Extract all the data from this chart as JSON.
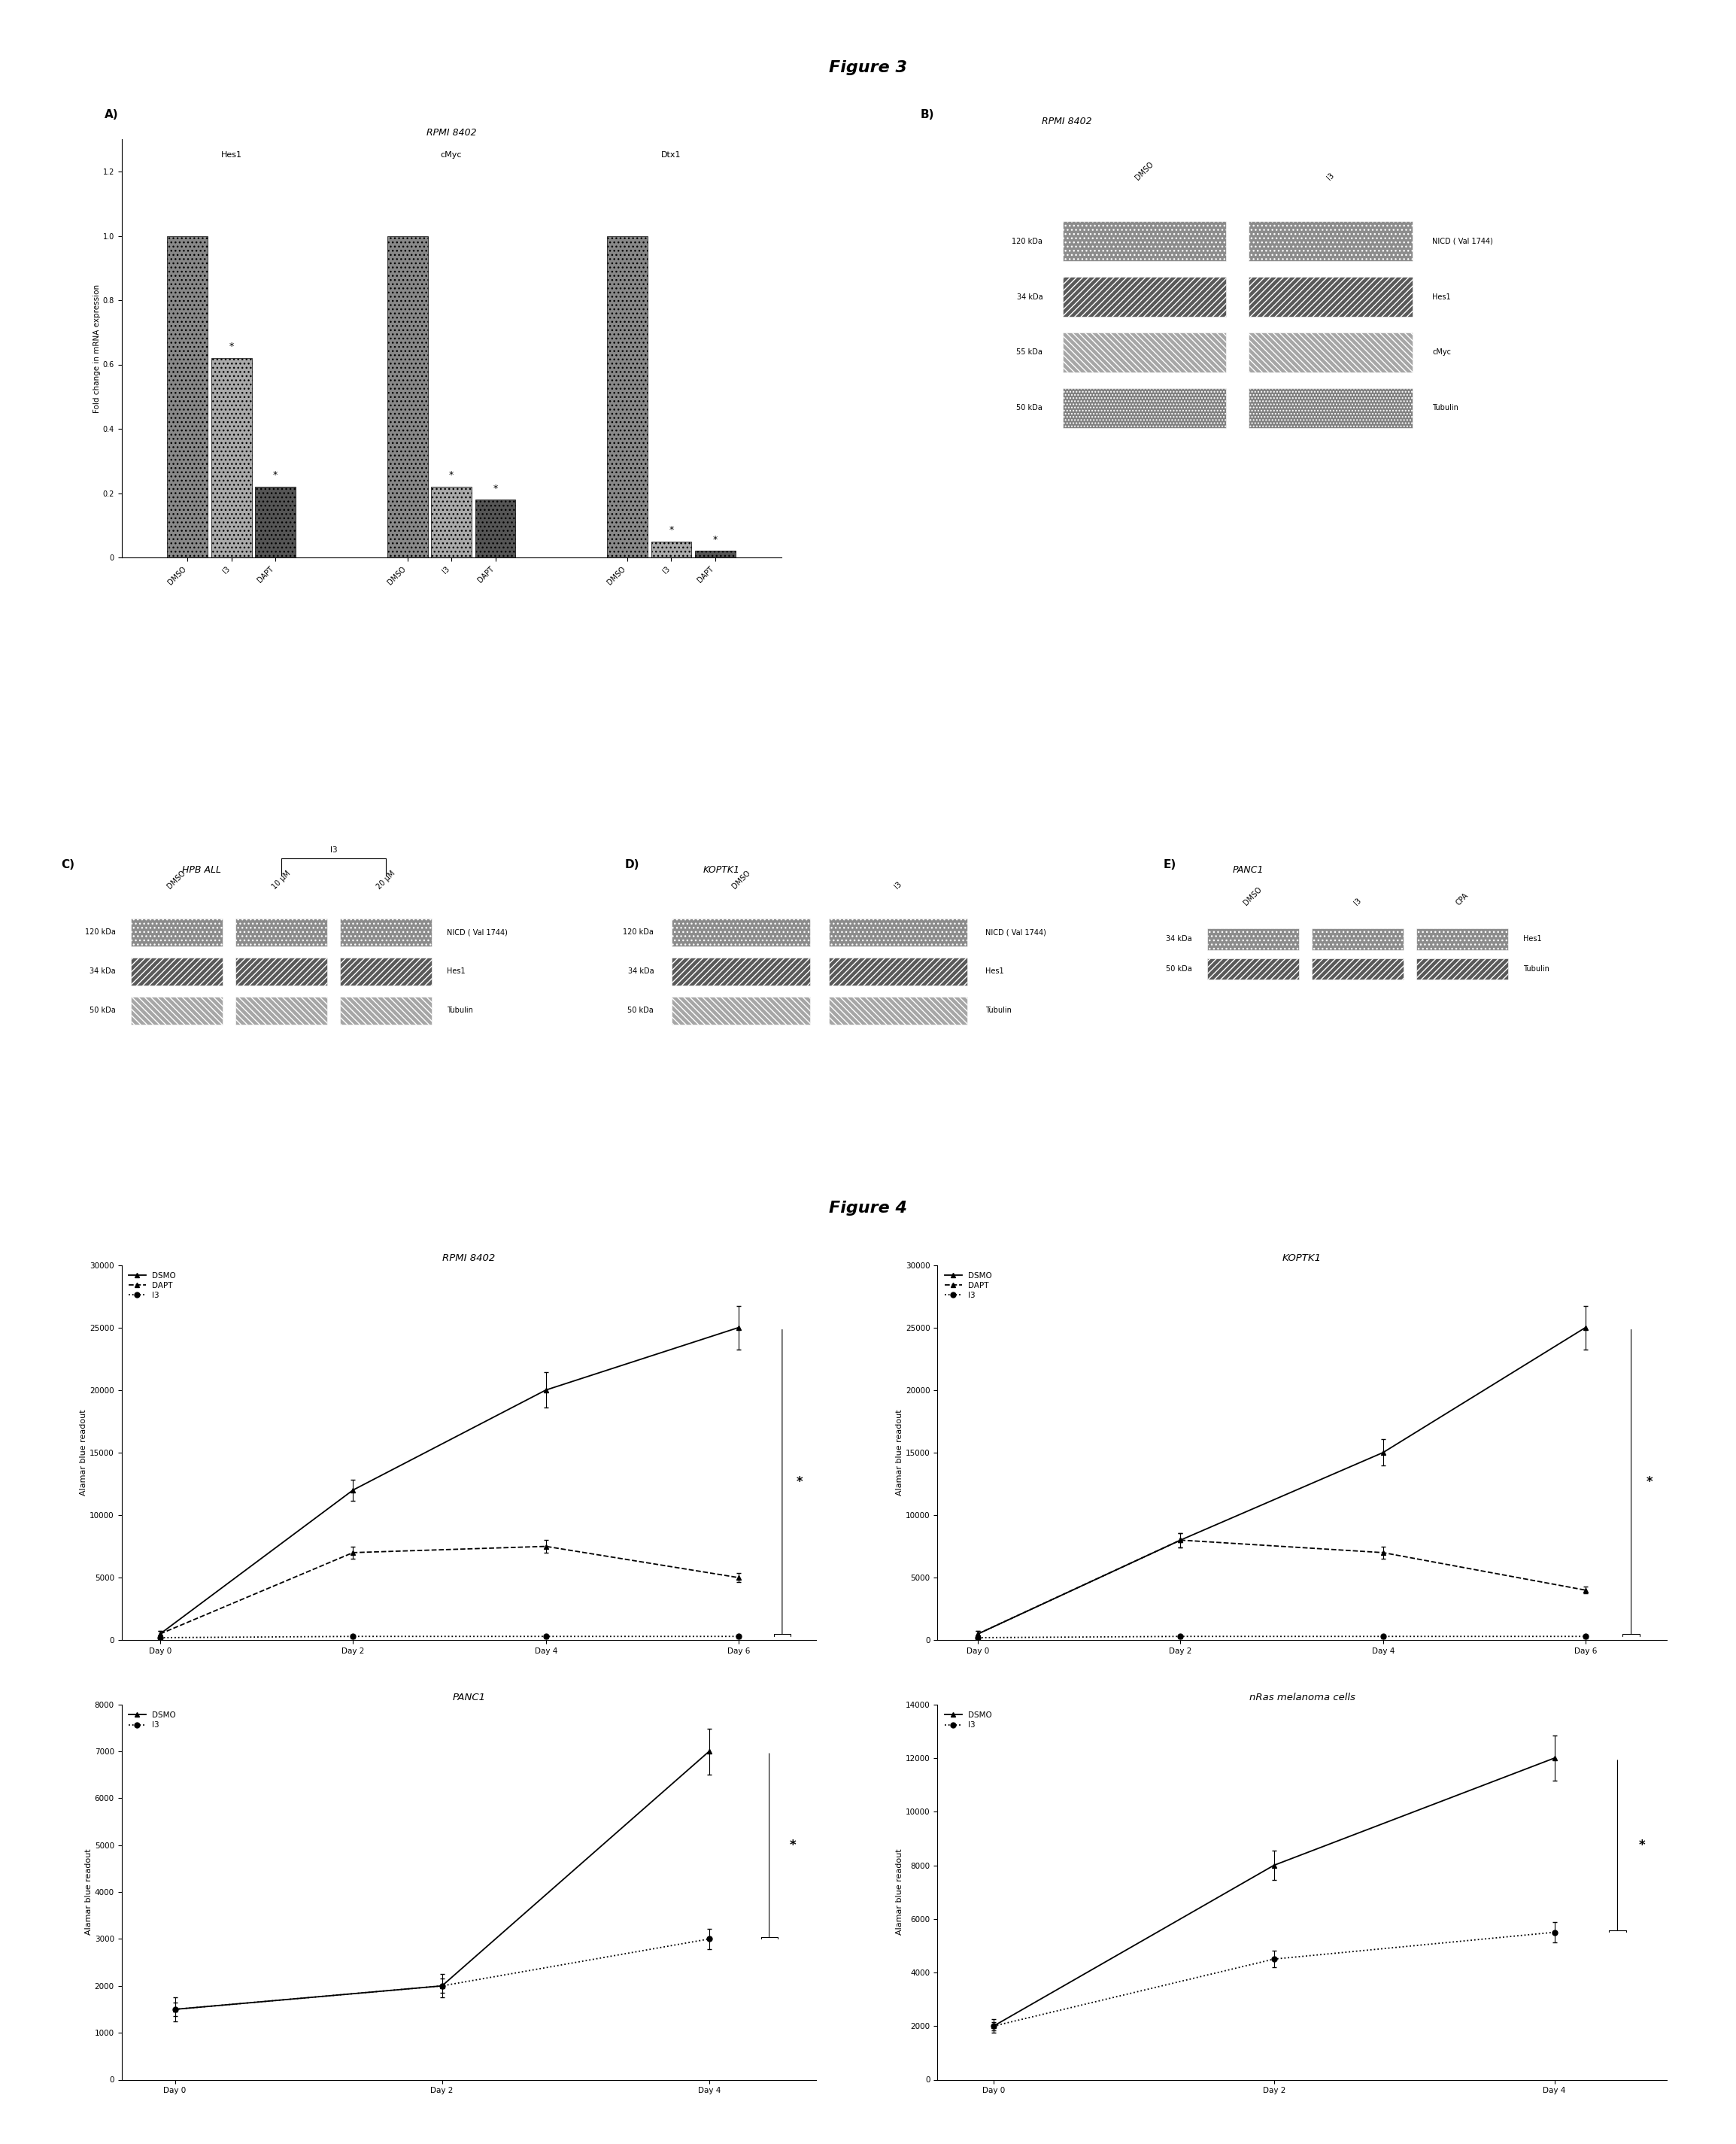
{
  "fig3_title": "Figure 3",
  "fig4_title": "Figure 4",
  "panel_A_title": "RPMI 8402",
  "panel_A_label": "A)",
  "panel_A_ylabel": "Fold change in mRNA expression",
  "panel_A_groups": [
    "Hes1",
    "cMyc",
    "Dtx1"
  ],
  "panel_A_conditions": [
    "DMSO",
    "I3",
    "DAPT"
  ],
  "panel_A_values": {
    "Hes1": [
      1.0,
      0.62,
      0.22
    ],
    "cMyc": [
      1.0,
      0.22,
      0.18
    ],
    "Dtx1": [
      1.0,
      0.05,
      0.02
    ]
  },
  "panel_A_ylim": [
    0,
    1.3
  ],
  "panel_A_yticks": [
    0,
    0.2,
    0.4,
    0.6,
    0.8,
    1.0,
    1.2
  ],
  "panel_B_label": "B)",
  "panel_B_title": "RPMI 8402",
  "panel_B_bands": [
    {
      "kda": "120 kDa",
      "label": "NICD ( Val 1744)"
    },
    {
      "kda": "34 kDa",
      "label": "Hes1"
    },
    {
      "kda": "55 kDa",
      "label": "cMyc"
    },
    {
      "kda": "50 kDa",
      "label": "Tubulin"
    }
  ],
  "panel_B_cols": [
    "DMSO",
    "I3"
  ],
  "panel_C_label": "C)",
  "panel_C_title": "HPB ALL",
  "panel_C_bracket": "I3",
  "panel_C_cols": [
    "DMSO",
    "10 μM",
    "20 μM"
  ],
  "panel_C_bands": [
    {
      "kda": "120 kDa",
      "label": "NICD ( Val 1744)"
    },
    {
      "kda": "34 kDa",
      "label": "Hes1"
    },
    {
      "kda": "50 kDa",
      "label": "Tubulin"
    }
  ],
  "panel_D_label": "D)",
  "panel_D_title": "KOPTK1",
  "panel_D_cols": [
    "DMSO",
    "I3"
  ],
  "panel_D_bands": [
    {
      "kda": "120 kDa",
      "label": "NICD ( Val 1744)"
    },
    {
      "kda": "34 kDa",
      "label": "Hes1"
    },
    {
      "kda": "50 kDa",
      "label": "Tubulin"
    }
  ],
  "panel_E_label": "E)",
  "panel_E_title": "PANC1",
  "panel_E_cols": [
    "DMSO",
    "I3",
    "CPA"
  ],
  "panel_E_bands": [
    {
      "kda": "34 kDa",
      "label": "Hes1"
    },
    {
      "kda": "50 kDa",
      "label": "Tubulin"
    }
  ],
  "fig4_RPMI_title": "RPMI 8402",
  "fig4_RPMI_ylabel": "Alamar blue readout",
  "fig4_RPMI_days": [
    0,
    2,
    4,
    6
  ],
  "fig4_RPMI_DSMO": [
    500,
    12000,
    20000,
    25000
  ],
  "fig4_RPMI_DAPT": [
    500,
    7000,
    7500,
    5000
  ],
  "fig4_RPMI_I3": [
    200,
    300,
    300,
    300
  ],
  "fig4_RPMI_ylim": [
    0,
    30000
  ],
  "fig4_RPMI_yticks": [
    0,
    5000,
    10000,
    15000,
    20000,
    25000,
    30000
  ],
  "fig4_KOPTK1_title": "KOPTK1",
  "fig4_KOPTK1_ylabel": "Alamar blue readout",
  "fig4_KOPTK1_days": [
    0,
    2,
    4,
    6
  ],
  "fig4_KOPTK1_DSMO": [
    500,
    8000,
    15000,
    25000
  ],
  "fig4_KOPTK1_DAPT": [
    500,
    8000,
    7000,
    4000
  ],
  "fig4_KOPTK1_I3": [
    200,
    300,
    300,
    300
  ],
  "fig4_KOPTK1_ylim": [
    0,
    30000
  ],
  "fig4_KOPTK1_yticks": [
    0,
    5000,
    10000,
    15000,
    20000,
    25000,
    30000
  ],
  "fig4_PANC1_title": "PANC1",
  "fig4_PANC1_ylabel": "Alamar blue readout",
  "fig4_PANC1_days": [
    0,
    2,
    4
  ],
  "fig4_PANC1_DSMO": [
    1500,
    2000,
    7000
  ],
  "fig4_PANC1_I3": [
    1500,
    2000,
    3000
  ],
  "fig4_PANC1_ylim": [
    0,
    8000
  ],
  "fig4_PANC1_yticks": [
    0,
    1000,
    2000,
    3000,
    4000,
    5000,
    6000,
    7000,
    8000
  ],
  "fig4_nRas_title": "nRas melanoma cells",
  "fig4_nRas_ylabel": "Alamar blue readout",
  "fig4_nRas_days": [
    0,
    2,
    4
  ],
  "fig4_nRas_DSMO": [
    2000,
    8000,
    12000
  ],
  "fig4_nRas_I3": [
    2000,
    4500,
    5500
  ],
  "fig4_nRas_ylim": [
    0,
    14000
  ],
  "fig4_nRas_yticks": [
    0,
    2000,
    4000,
    6000,
    8000,
    10000,
    12000,
    14000
  ],
  "background": "#ffffff"
}
